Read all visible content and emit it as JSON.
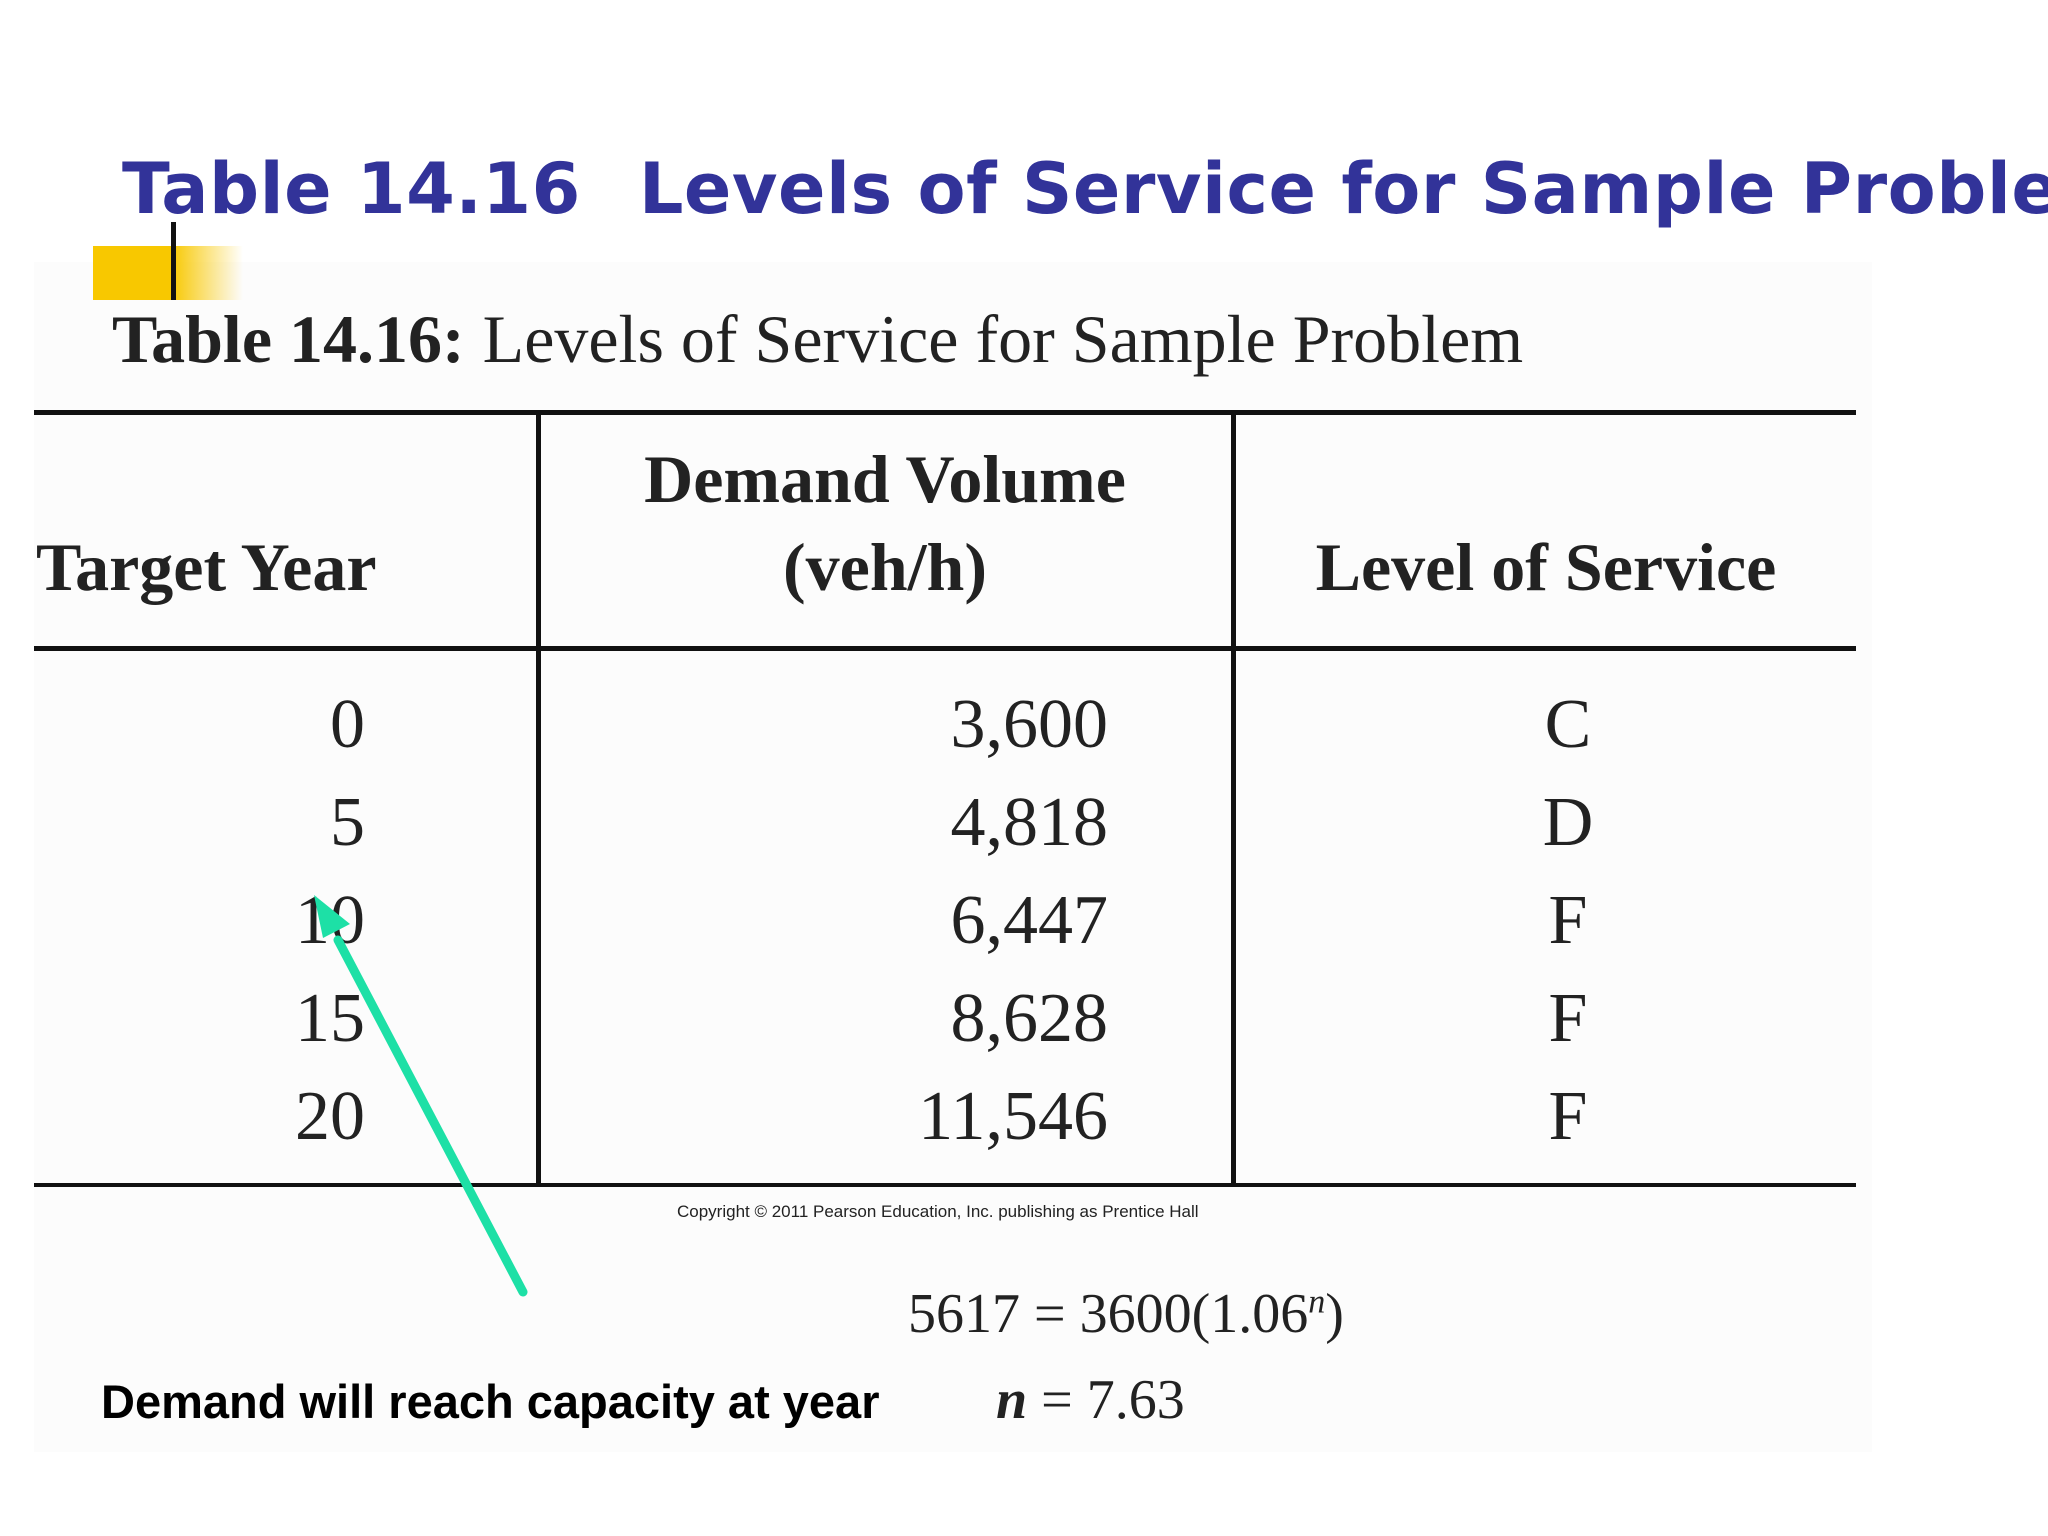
{
  "slide": {
    "title_number": "Table 14.16",
    "title_text": "Levels of Service for Sample Problem"
  },
  "table": {
    "caption_label": "Table 14.16:",
    "caption_text": "Levels of Service for Sample Problem",
    "headers": {
      "target_year": "Target Year",
      "demand_volume_line1": "Demand Volume",
      "demand_volume_line2": "(veh/h)",
      "level_of_service": "Level of Service"
    },
    "rows": [
      {
        "year": "0",
        "volume": "3,600",
        "los": "C"
      },
      {
        "year": "5",
        "volume": "4,818",
        "los": "D"
      },
      {
        "year": "10",
        "volume": "6,447",
        "los": "F"
      },
      {
        "year": "15",
        "volume": "8,628",
        "los": "F"
      },
      {
        "year": "20",
        "volume": "11,546",
        "los": "F"
      }
    ],
    "copyright": "Copyright © 2011 Pearson Education, Inc. publishing as Prentice Hall"
  },
  "equation": {
    "lhs": "5617",
    "eq": "=",
    "rhs": "3600(1.06",
    "exponent": "n",
    "close": ")"
  },
  "conclusion": {
    "text": "Demand will reach capacity at year",
    "var": "n",
    "eq": "=",
    "value": "7.63"
  },
  "colors": {
    "title": "#323399",
    "bullet": "#f8c800",
    "arrow": "#1de0a6"
  }
}
